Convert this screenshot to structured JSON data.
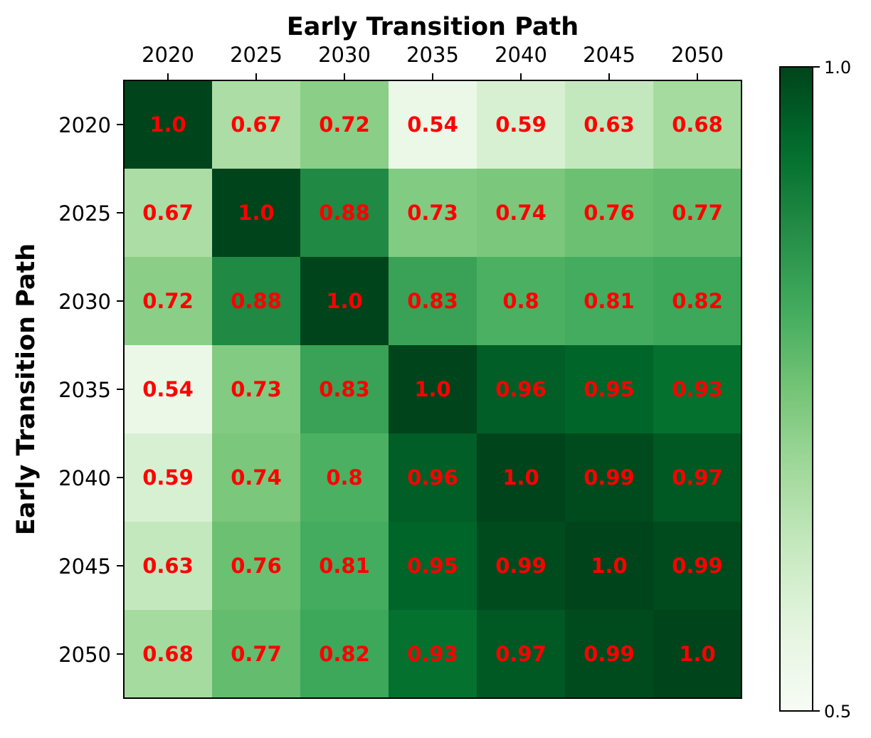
{
  "chart_data": {
    "type": "heatmap",
    "title": "Early Transition Path",
    "ylabel": "Early Transition Path",
    "xlabel": "",
    "x_categories": [
      "2020",
      "2025",
      "2030",
      "2035",
      "2040",
      "2045",
      "2050"
    ],
    "y_categories": [
      "2020",
      "2025",
      "2030",
      "2035",
      "2040",
      "2045",
      "2050"
    ],
    "values": [
      [
        1.0,
        0.67,
        0.72,
        0.54,
        0.59,
        0.63,
        0.68
      ],
      [
        0.67,
        1.0,
        0.88,
        0.73,
        0.74,
        0.76,
        0.77
      ],
      [
        0.72,
        0.88,
        1.0,
        0.83,
        0.8,
        0.81,
        0.82
      ],
      [
        0.54,
        0.73,
        0.83,
        1.0,
        0.96,
        0.95,
        0.93
      ],
      [
        0.59,
        0.74,
        0.8,
        0.96,
        1.0,
        0.99,
        0.97
      ],
      [
        0.63,
        0.76,
        0.81,
        0.95,
        0.99,
        1.0,
        0.99
      ],
      [
        0.68,
        0.77,
        0.82,
        0.93,
        0.97,
        0.99,
        1.0
      ]
    ],
    "value_labels": [
      [
        "1.0",
        "0.67",
        "0.72",
        "0.54",
        "0.59",
        "0.63",
        "0.68"
      ],
      [
        "0.67",
        "1.0",
        "0.88",
        "0.73",
        "0.74",
        "0.76",
        "0.77"
      ],
      [
        "0.72",
        "0.88",
        "1.0",
        "0.83",
        "0.8",
        "0.81",
        "0.82"
      ],
      [
        "0.54",
        "0.73",
        "0.83",
        "1.0",
        "0.96",
        "0.95",
        "0.93"
      ],
      [
        "0.59",
        "0.74",
        "0.8",
        "0.96",
        "1.0",
        "0.99",
        "0.97"
      ],
      [
        "0.63",
        "0.76",
        "0.81",
        "0.95",
        "0.99",
        "1.0",
        "0.99"
      ],
      [
        "0.68",
        "0.77",
        "0.82",
        "0.93",
        "0.97",
        "0.99",
        "1.0"
      ]
    ],
    "colormap": "Greens",
    "vmin": 0.5,
    "vmax": 1.0,
    "colorbar_ticks": [
      "0.5",
      "1.0"
    ],
    "x_tick_position": "top",
    "annotation_color": "#ff0000",
    "grid": false
  }
}
